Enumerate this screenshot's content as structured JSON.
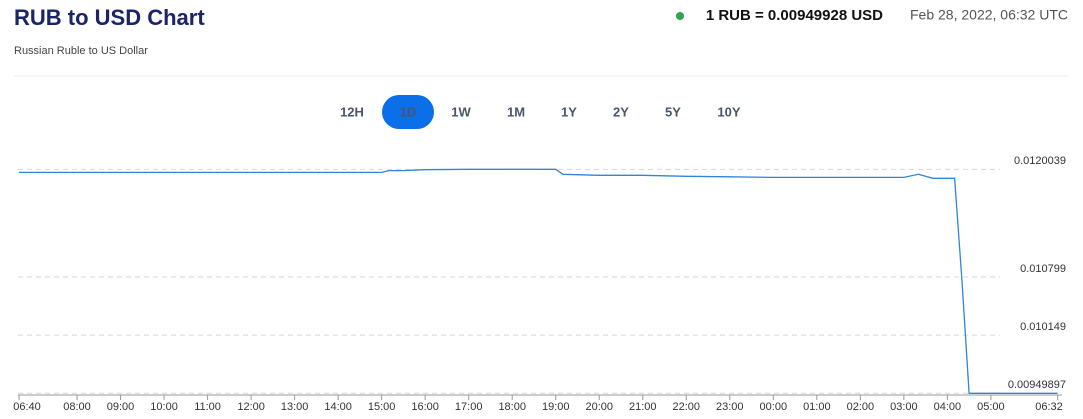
{
  "header": {
    "title": "RUB to USD Chart",
    "subtitle": "Russian Ruble to US Dollar",
    "rate": "1 RUB = 0.00949928 USD",
    "timestamp": "Feb 28, 2022, 06:32 UTC"
  },
  "range_buttons": {
    "labels": [
      "12H",
      "1D",
      "1W",
      "1M",
      "1Y",
      "2Y",
      "5Y",
      "10Y"
    ],
    "selected": "1D"
  },
  "chart_data": {
    "type": "line",
    "color": "#2f86d6",
    "grid": true,
    "x": [
      "06:40",
      "08:00",
      "10:00",
      "12:00",
      "14:00",
      "15:00",
      "15:10",
      "15:30",
      "16:00",
      "17:00",
      "18:00",
      "19:00",
      "19:10",
      "20:00",
      "21:00",
      "22:00",
      "23:00",
      "00:00",
      "01:00",
      "02:00",
      "03:00",
      "03:20",
      "03:40",
      "04:10",
      "04:20",
      "04:30",
      "05:00",
      "06:32"
    ],
    "values": [
      0.01197,
      0.01197,
      0.01197,
      0.01197,
      0.01197,
      0.01197,
      0.01199,
      0.01199,
      0.012,
      0.012004,
      0.012004,
      0.012004,
      0.011948,
      0.011937,
      0.011937,
      0.011926,
      0.01192,
      0.011914,
      0.011914,
      0.011914,
      0.011914,
      0.011948,
      0.011903,
      0.011903,
      0.01077,
      0.009499,
      0.009499,
      0.009499
    ],
    "xticks": [
      "06:40",
      "08:00",
      "09:00",
      "10:00",
      "11:00",
      "12:00",
      "13:00",
      "14:00",
      "15:00",
      "16:00",
      "17:00",
      "18:00",
      "19:00",
      "20:00",
      "21:00",
      "22:00",
      "23:00",
      "00:00",
      "01:00",
      "02:00",
      "03:00",
      "04:00",
      "05:00",
      "06:32"
    ],
    "ylim": [
      0.00948,
      0.01222
    ],
    "yticks": [
      0.00949897,
      0.010149,
      0.010799,
      0.0120039
    ]
  }
}
